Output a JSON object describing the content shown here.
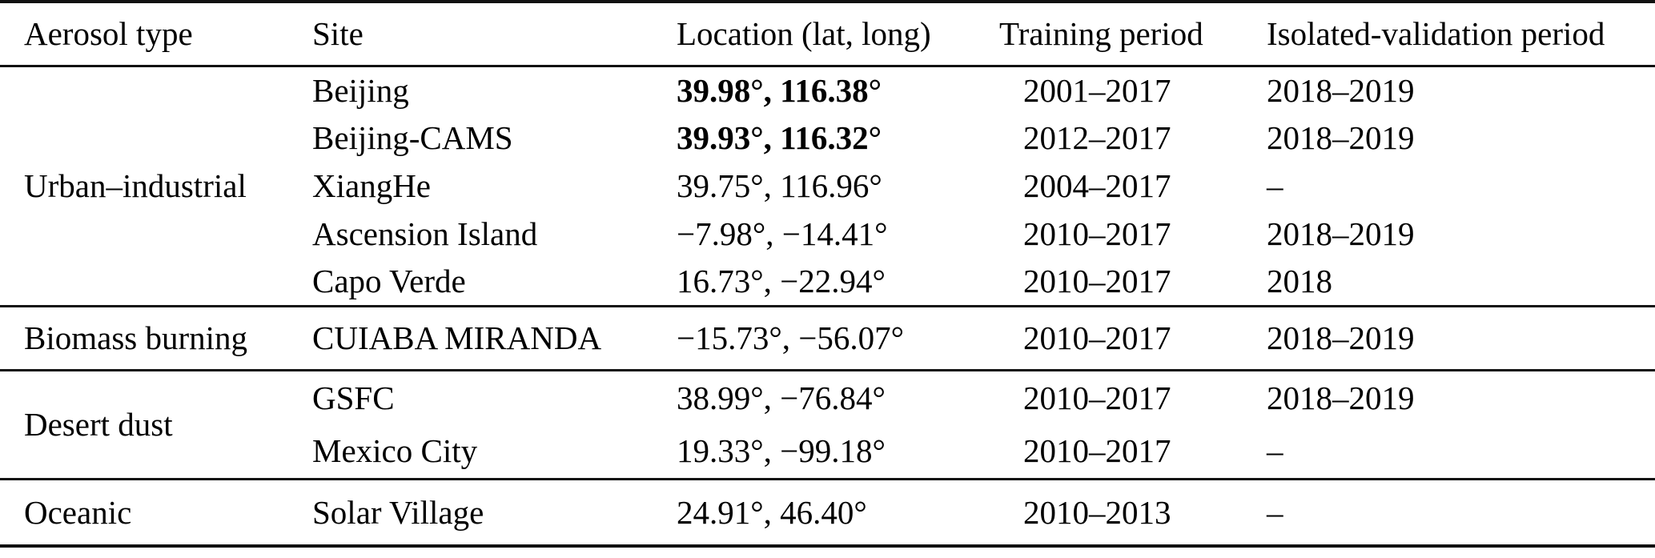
{
  "colors": {
    "background": "#ffffff",
    "text": "#000000",
    "rule": "#111111"
  },
  "table": {
    "columns": [
      "Aerosol type",
      "Site",
      "Location (lat, long)",
      "Training period",
      "Isolated-validation period"
    ],
    "groups": [
      {
        "aerosol_type": "Urban–industrial",
        "rows": [
          {
            "site": "Beijing",
            "location": "39.98°, 116.38°",
            "training": "2001–2017",
            "validation": "2018–2019"
          },
          {
            "site": "Beijing-CAMS",
            "location": "39.93°, 116.32°",
            "training": "2012–2017",
            "validation": "2018–2019"
          },
          {
            "site": "XiangHe",
            "location": "39.75°, 116.96°",
            "training": "2004–2017",
            "validation": "–"
          },
          {
            "site": "Ascension Island",
            "location": "−7.98°, −14.41°",
            "training": "2010–2017",
            "validation": "2018–2019"
          },
          {
            "site": "Capo Verde",
            "location": "16.73°, −22.94°",
            "training": "2010–2017",
            "validation": "2018"
          }
        ]
      },
      {
        "aerosol_type": "Biomass burning",
        "rows": [
          {
            "site": "CUIABA MIRANDA",
            "location": "−15.73°, −56.07°",
            "training": "2010–2017",
            "validation": "2018–2019"
          }
        ]
      },
      {
        "aerosol_type": "Desert dust",
        "rows": [
          {
            "site": "GSFC",
            "location": "38.99°, −76.84°",
            "training": "2010–2017",
            "validation": "2018–2019"
          },
          {
            "site": "Mexico City",
            "location": "19.33°, −99.18°",
            "training": "2010–2017",
            "validation": "–"
          }
        ]
      },
      {
        "aerosol_type": "Oceanic",
        "rows": [
          {
            "site": "Solar Village",
            "location": "24.91°, 46.40°",
            "training": "2010–2013",
            "validation": "–"
          }
        ]
      }
    ]
  }
}
